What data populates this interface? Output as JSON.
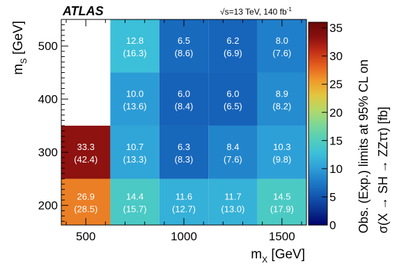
{
  "chart_data": {
    "type": "heatmap",
    "experiment": "ATLAS",
    "energy_label": "√s=13 TeV, 140 fb",
    "energy_sup": "-1",
    "xlabel": "m",
    "xlabel_sub": "X",
    "xlabel_unit": "[GeV]",
    "ylabel": "m",
    "ylabel_sub": "S",
    "ylabel_unit": "[GeV]",
    "zlabel_line1": "Obs. (Exp.) limits at 95% CL on",
    "zlabel_line2": "σ(X → SH → ZZττ) [fb]",
    "x_ticks": [
      500,
      1000,
      1500
    ],
    "y_ticks": [
      200,
      300,
      400,
      500
    ],
    "z_ticks": [
      0,
      5,
      10,
      15,
      20,
      25,
      30,
      35
    ],
    "xlim": [
      375,
      1625
    ],
    "ylim": [
      163,
      550
    ],
    "zlim": [
      0,
      36
    ],
    "x_bin_edges": [
      375,
      625,
      875,
      1125,
      1375,
      1625
    ],
    "y_bin_edges": [
      163,
      250,
      350,
      450,
      550
    ],
    "cells": [
      {
        "x": 500,
        "y": 200,
        "obs": 26.9,
        "exp": 28.5,
        "obs_label": "26.9",
        "exp_label": "(28.5)"
      },
      {
        "x": 750,
        "y": 200,
        "obs": 14.4,
        "exp": 15.7,
        "obs_label": "14.4",
        "exp_label": "(15.7)"
      },
      {
        "x": 1000,
        "y": 200,
        "obs": 11.6,
        "exp": 12.7,
        "obs_label": "11.6",
        "exp_label": "(12.7)"
      },
      {
        "x": 1250,
        "y": 200,
        "obs": 11.7,
        "exp": 13.0,
        "obs_label": "11.7",
        "exp_label": "(13.0)"
      },
      {
        "x": 1500,
        "y": 200,
        "obs": 14.5,
        "exp": 17.9,
        "obs_label": "14.5",
        "exp_label": "(17.9)"
      },
      {
        "x": 500,
        "y": 300,
        "obs": 33.3,
        "exp": 42.4,
        "obs_label": "33.3",
        "exp_label": "(42.4)"
      },
      {
        "x": 750,
        "y": 300,
        "obs": 10.7,
        "exp": 13.3,
        "obs_label": "10.7",
        "exp_label": "(13.3)"
      },
      {
        "x": 1000,
        "y": 300,
        "obs": 6.3,
        "exp": 8.3,
        "obs_label": "6.3",
        "exp_label": "(8.3)"
      },
      {
        "x": 1250,
        "y": 300,
        "obs": 8.4,
        "exp": 7.6,
        "obs_label": "8.4",
        "exp_label": "(7.6)"
      },
      {
        "x": 1500,
        "y": 300,
        "obs": 10.3,
        "exp": 9.8,
        "obs_label": "10.3",
        "exp_label": "(9.8)"
      },
      {
        "x": 750,
        "y": 400,
        "obs": 10.0,
        "exp": 13.6,
        "obs_label": "10.0",
        "exp_label": "(13.6)"
      },
      {
        "x": 1000,
        "y": 400,
        "obs": 6.0,
        "exp": 8.4,
        "obs_label": "6.0",
        "exp_label": "(8.4)"
      },
      {
        "x": 1250,
        "y": 400,
        "obs": 6.0,
        "exp": 6.5,
        "obs_label": "6.0",
        "exp_label": "(6.5)"
      },
      {
        "x": 1500,
        "y": 400,
        "obs": 8.9,
        "exp": 8.2,
        "obs_label": "8.9",
        "exp_label": "(8.2)"
      },
      {
        "x": 750,
        "y": 500,
        "obs": 12.8,
        "exp": 16.3,
        "obs_label": "12.8",
        "exp_label": "(16.3)"
      },
      {
        "x": 1000,
        "y": 500,
        "obs": 6.5,
        "exp": 8.6,
        "obs_label": "6.5",
        "exp_label": "(8.6)"
      },
      {
        "x": 1250,
        "y": 500,
        "obs": 6.2,
        "exp": 6.9,
        "obs_label": "6.2",
        "exp_label": "(6.9)"
      },
      {
        "x": 1500,
        "y": 500,
        "obs": 8.0,
        "exp": 7.6,
        "obs_label": "8.0",
        "exp_label": "(7.6)"
      }
    ],
    "colormap": [
      "#00006a",
      "#0a2f8e",
      "#1256b0",
      "#1e7bc8",
      "#2ea0d8",
      "#3cc0d8",
      "#54cfb8",
      "#7fd896",
      "#b5d867",
      "#e3c63f",
      "#f09a2b",
      "#e6601d",
      "#c42f17",
      "#8a1010",
      "#6a0707"
    ],
    "grid": false,
    "legend": "colorbar-right"
  }
}
